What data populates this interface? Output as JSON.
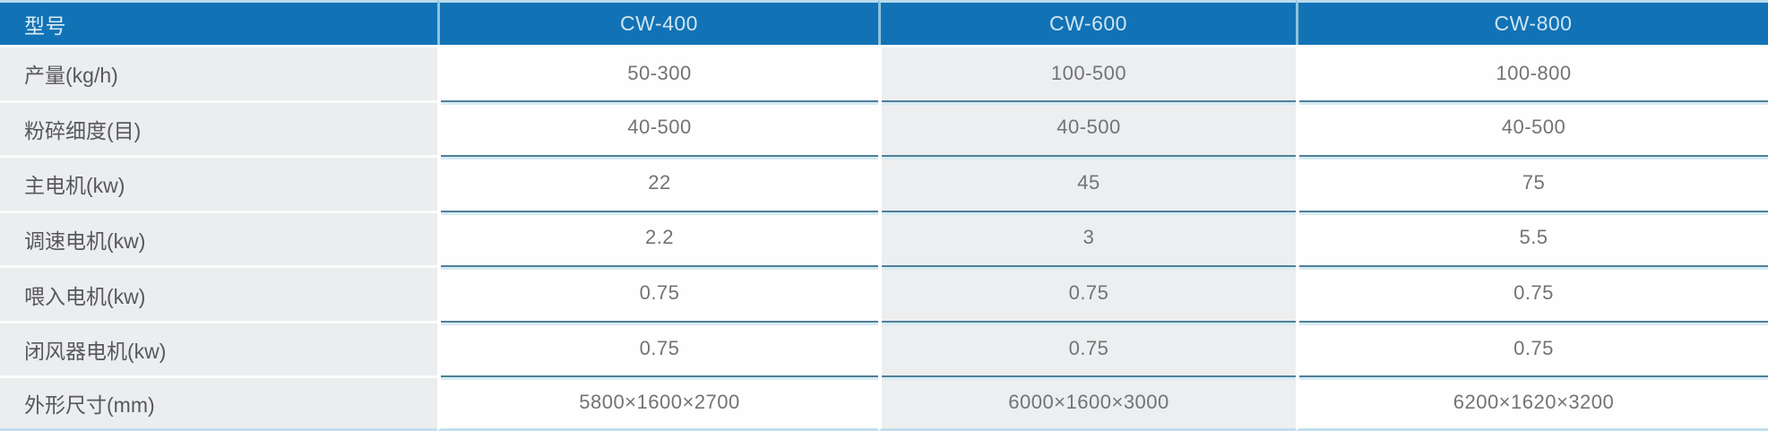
{
  "table": {
    "header": {
      "label": "型号",
      "models": [
        "CW-400",
        "CW-600",
        "CW-800"
      ]
    },
    "rows": [
      {
        "label": "产量(kg/h)",
        "values": [
          "50-300",
          "100-500",
          "100-800"
        ]
      },
      {
        "label": "粉碎细度(目)",
        "values": [
          "40-500",
          "40-500",
          "40-500"
        ]
      },
      {
        "label": "主电机(kw)",
        "values": [
          "22",
          "45",
          "75"
        ]
      },
      {
        "label": "调速电机(kw)",
        "values": [
          "2.2",
          "3",
          "5.5"
        ]
      },
      {
        "label": "喂入电机(kw)",
        "values": [
          "0.75",
          "0.75",
          "0.75"
        ]
      },
      {
        "label": "闭风器电机(kw)",
        "values": [
          "0.75",
          "0.75",
          "0.75"
        ]
      },
      {
        "label": "外形尺寸(mm)",
        "values": [
          "5800×1600×2700",
          "6000×1600×3000",
          "6200×1620×3200"
        ]
      }
    ],
    "colors": {
      "header_bg": "#1173b6",
      "header_text": "#cfe4f1",
      "accent_light_blue": "#b9dcec",
      "divider_steel_blue": "#4f8099",
      "divider_pale_blue": "#d7ebf4",
      "label_column_bg": "#ecedee",
      "label_text": "#57585a",
      "value_text": "#727375"
    }
  }
}
